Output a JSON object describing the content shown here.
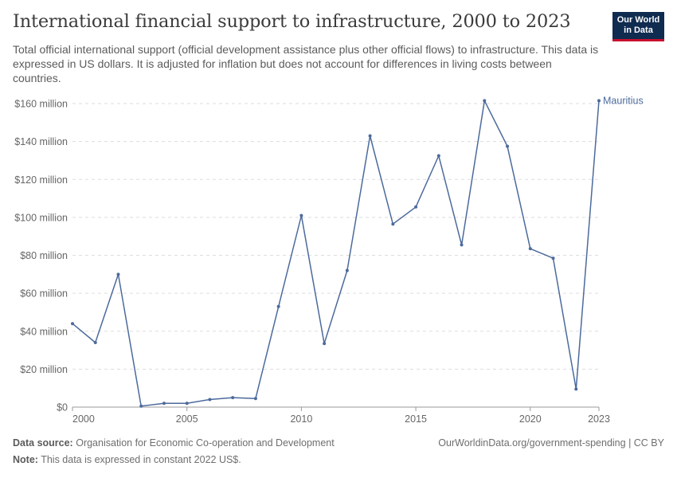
{
  "header": {
    "title": "International financial support to infrastructure, 2000 to 2023",
    "subtitle": "Total official international support (official development assistance plus other official flows) to infrastructure. This data is expressed in US dollars. It is adjusted for inflation but does not account for differences in living costs between countries."
  },
  "logo": {
    "line1": "Our World",
    "line2": "in Data"
  },
  "footer": {
    "source_label": "Data source:",
    "source_text": "Organisation for Economic Co-operation and Development",
    "note_label": "Note:",
    "note_text": "This data is expressed in constant 2022 US$.",
    "url_license": "OurWorldinData.org/government-spending | CC BY"
  },
  "colors": {
    "series": "#4c6a9c",
    "grid": "#dddddd",
    "axis": "#999999",
    "title": "#3b3b3b",
    "logo_bg": "#0f2b50",
    "logo_accent": "#c8102e"
  },
  "chart_data": {
    "type": "line",
    "title": "International financial support to infrastructure, 2000 to 2023",
    "x": [
      2000,
      2001,
      2002,
      2003,
      2004,
      2005,
      2006,
      2007,
      2008,
      2009,
      2010,
      2011,
      2012,
      2013,
      2014,
      2015,
      2016,
      2017,
      2018,
      2019,
      2020,
      2021,
      2022,
      2023
    ],
    "series": [
      {
        "name": "Mauritius",
        "values": [
          44,
          34,
          70,
          0.5,
          2,
          2,
          4,
          5,
          4.5,
          53,
          101,
          33.5,
          72,
          143,
          96.5,
          105.5,
          132.5,
          85.5,
          161.5,
          137.5,
          83.5,
          78.5,
          9.5,
          161.5
        ]
      }
    ],
    "xlim": [
      2000,
      2023
    ],
    "ylim": [
      0,
      160
    ],
    "y_unit": "million US$",
    "y_ticks": [
      0,
      20,
      40,
      60,
      80,
      100,
      120,
      140,
      160
    ],
    "y_tick_labels": [
      "$0",
      "$20 million",
      "$40 million",
      "$60 million",
      "$80 million",
      "$100 million",
      "$120 million",
      "$140 million",
      "$160 million"
    ],
    "x_ticks": [
      2000,
      2005,
      2010,
      2015,
      2020,
      2023
    ],
    "x_tick_labels": [
      "2000",
      "2005",
      "2010",
      "2015",
      "2020",
      "2023"
    ],
    "grid": "horizontal dashed",
    "legend": "inline label at line end"
  }
}
